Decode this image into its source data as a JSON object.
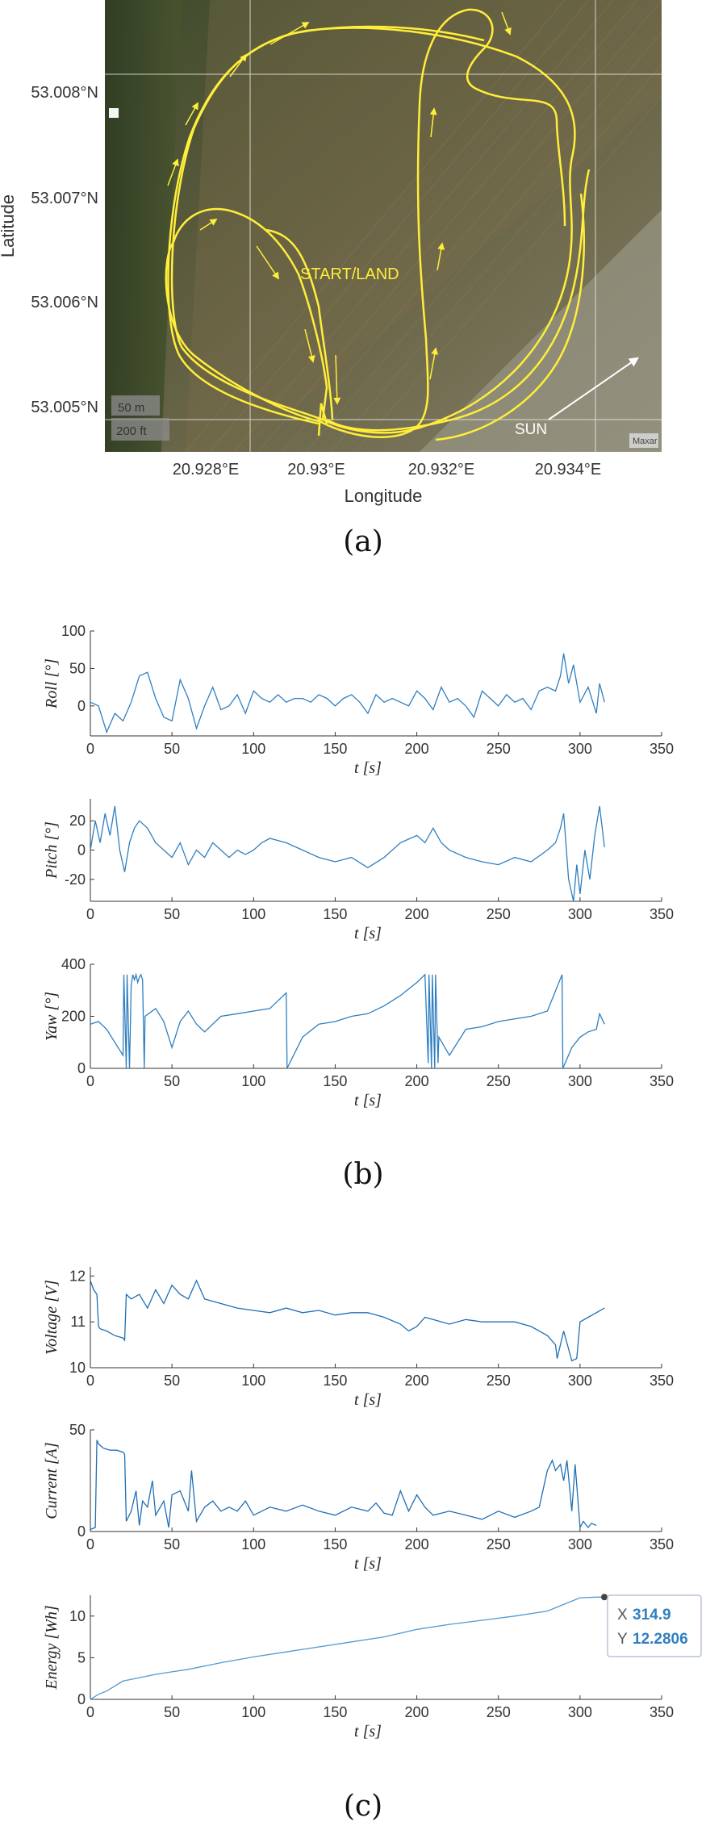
{
  "figure": {
    "captions": [
      "(a)",
      "(b)",
      "(c)"
    ]
  },
  "map": {
    "xlabel": "Longitude",
    "ylabel": "Latitude",
    "x_ticks": [
      "20.928°E",
      "20.93°E",
      "20.932°E",
      "20.934°E"
    ],
    "y_ticks": [
      "53.008°N",
      "53.007°N",
      "53.006°N",
      "53.005°N"
    ],
    "annotation_start": "START/LAND",
    "annotation_sun": "SUN",
    "scale_m": "50 m",
    "scale_ft": "200 ft",
    "attribution": "Maxar",
    "track_color": "#ffee3a",
    "ground_colors": [
      "#3e4d2c",
      "#6f6a4b",
      "#8f8a70"
    ]
  },
  "chart_data": [
    {
      "type": "line",
      "panel": "b",
      "ylabel": "Roll [°]",
      "xlabel": "t [s]",
      "xlim": [
        0,
        350
      ],
      "ylim": [
        -40,
        100
      ],
      "x_ticks": [
        "0",
        "50",
        "100",
        "150",
        "200",
        "250",
        "300",
        "350"
      ],
      "y_ticks": [
        "100",
        "50",
        "0"
      ],
      "color": "#2f7fc0",
      "x": [
        0,
        5,
        10,
        15,
        20,
        25,
        30,
        35,
        40,
        45,
        50,
        55,
        60,
        65,
        70,
        75,
        80,
        85,
        90,
        95,
        100,
        105,
        110,
        115,
        120,
        125,
        130,
        135,
        140,
        145,
        150,
        155,
        160,
        165,
        170,
        175,
        180,
        185,
        190,
        195,
        200,
        205,
        210,
        215,
        220,
        225,
        230,
        235,
        240,
        245,
        250,
        255,
        260,
        265,
        270,
        275,
        280,
        285,
        288,
        290,
        293,
        296,
        300,
        305,
        310,
        312,
        315
      ],
      "y": [
        5,
        0,
        -35,
        -10,
        -20,
        5,
        40,
        45,
        10,
        -15,
        -20,
        35,
        10,
        -30,
        0,
        25,
        -5,
        0,
        15,
        -10,
        20,
        10,
        5,
        15,
        5,
        10,
        10,
        5,
        15,
        10,
        0,
        10,
        15,
        5,
        -10,
        15,
        5,
        10,
        5,
        0,
        20,
        10,
        -5,
        25,
        5,
        10,
        0,
        -15,
        20,
        10,
        0,
        15,
        5,
        10,
        -5,
        20,
        25,
        20,
        40,
        70,
        30,
        55,
        5,
        25,
        -10,
        30,
        5
      ]
    },
    {
      "type": "line",
      "panel": "b",
      "ylabel": "Pitch [°]",
      "xlabel": "t [s]",
      "xlim": [
        0,
        350
      ],
      "ylim": [
        -35,
        35
      ],
      "x_ticks": [
        "0",
        "50",
        "100",
        "150",
        "200",
        "250",
        "300",
        "350"
      ],
      "y_ticks": [
        "20",
        "0",
        "-20"
      ],
      "color": "#2f7fc0",
      "x": [
        0,
        3,
        6,
        9,
        12,
        15,
        18,
        21,
        24,
        27,
        30,
        35,
        40,
        45,
        50,
        55,
        60,
        65,
        70,
        75,
        80,
        85,
        90,
        95,
        100,
        105,
        110,
        120,
        130,
        140,
        150,
        160,
        170,
        180,
        190,
        200,
        205,
        210,
        215,
        220,
        230,
        240,
        250,
        260,
        270,
        280,
        285,
        288,
        290,
        293,
        296,
        298,
        300,
        303,
        306,
        309,
        312,
        315
      ],
      "y": [
        0,
        20,
        5,
        25,
        10,
        30,
        0,
        -15,
        5,
        15,
        20,
        15,
        5,
        0,
        -5,
        5,
        -10,
        0,
        -5,
        5,
        0,
        -5,
        0,
        -3,
        0,
        5,
        8,
        5,
        0,
        -5,
        -8,
        -5,
        -12,
        -5,
        5,
        10,
        5,
        15,
        5,
        0,
        -5,
        -8,
        -10,
        -5,
        -8,
        0,
        5,
        15,
        25,
        -20,
        -35,
        -10,
        -30,
        0,
        -20,
        10,
        30,
        2
      ]
    },
    {
      "type": "line",
      "panel": "b",
      "ylabel": "Yaw [°]",
      "xlabel": "t [s]",
      "xlim": [
        0,
        350
      ],
      "ylim": [
        0,
        400
      ],
      "x_ticks": [
        "0",
        "50",
        "100",
        "150",
        "200",
        "250",
        "300",
        "350"
      ],
      "y_ticks": [
        "400",
        "200",
        "0"
      ],
      "color": "#2f7fc0",
      "x": [
        0,
        5,
        10,
        15,
        20,
        20.5,
        22,
        22.5,
        24,
        25,
        26,
        27,
        28,
        29,
        30,
        31,
        32,
        33,
        33.5,
        40,
        45,
        50,
        55,
        60,
        65,
        70,
        80,
        90,
        100,
        110,
        120,
        120.5,
        130,
        140,
        150,
        160,
        170,
        180,
        190,
        200,
        205,
        207,
        207.5,
        209,
        209.5,
        211,
        211.5,
        213,
        213.5,
        220,
        230,
        240,
        250,
        260,
        270,
        280,
        289,
        289.5,
        295,
        300,
        305,
        310,
        312,
        315
      ],
      "y": [
        170,
        180,
        150,
        100,
        50,
        360,
        0,
        360,
        0,
        320,
        360,
        340,
        360,
        330,
        350,
        360,
        340,
        0,
        200,
        230,
        180,
        80,
        180,
        220,
        170,
        140,
        200,
        210,
        220,
        230,
        290,
        0,
        120,
        170,
        180,
        200,
        210,
        240,
        280,
        330,
        360,
        20,
        360,
        0,
        360,
        0,
        360,
        20,
        120,
        50,
        150,
        160,
        180,
        190,
        200,
        220,
        360,
        0,
        80,
        120,
        140,
        150,
        210,
        170
      ]
    },
    {
      "type": "line",
      "panel": "c",
      "ylabel": "Voltage [V]",
      "xlabel": "t [s]",
      "xlim": [
        0,
        350
      ],
      "ylim": [
        10,
        12.2
      ],
      "x_ticks": [
        "0",
        "50",
        "100",
        "150",
        "200",
        "250",
        "300",
        "350"
      ],
      "y_ticks": [
        "12",
        "11",
        "10"
      ],
      "color": "#1f6fb5",
      "x": [
        0,
        2,
        4,
        5,
        6,
        10,
        15,
        20,
        21,
        22,
        25,
        30,
        35,
        40,
        45,
        50,
        55,
        60,
        65,
        70,
        80,
        90,
        100,
        110,
        120,
        130,
        140,
        150,
        160,
        170,
        180,
        190,
        195,
        200,
        205,
        210,
        220,
        230,
        240,
        250,
        260,
        270,
        280,
        285,
        286,
        290,
        295,
        298,
        300,
        305,
        310,
        315
      ],
      "y": [
        11.9,
        11.7,
        11.6,
        10.9,
        10.85,
        10.8,
        10.7,
        10.65,
        10.6,
        11.6,
        11.5,
        11.6,
        11.3,
        11.7,
        11.4,
        11.8,
        11.6,
        11.5,
        11.9,
        11.5,
        11.4,
        11.3,
        11.25,
        11.2,
        11.3,
        11.2,
        11.25,
        11.15,
        11.2,
        11.2,
        11.1,
        10.95,
        10.8,
        10.9,
        11.1,
        11.05,
        10.95,
        11.05,
        11.0,
        11.0,
        11.0,
        10.9,
        10.7,
        10.5,
        10.2,
        10.8,
        10.15,
        10.2,
        11.0,
        11.1,
        11.2,
        11.3
      ]
    },
    {
      "type": "line",
      "panel": "c",
      "ylabel": "Current [A]",
      "xlabel": "t [s]",
      "xlim": [
        0,
        350
      ],
      "ylim": [
        0,
        50
      ],
      "x_ticks": [
        "0",
        "50",
        "100",
        "150",
        "200",
        "250",
        "300",
        "350"
      ],
      "y_ticks": [
        "50",
        "0"
      ],
      "color": "#1f6fb5",
      "x": [
        0,
        3,
        4,
        5,
        8,
        12,
        16,
        20,
        21,
        22,
        25,
        28,
        30,
        32,
        35,
        38,
        40,
        45,
        48,
        50,
        55,
        60,
        62,
        65,
        70,
        75,
        80,
        85,
        90,
        95,
        100,
        110,
        120,
        130,
        140,
        150,
        160,
        170,
        175,
        180,
        185,
        190,
        195,
        200,
        205,
        210,
        220,
        230,
        240,
        250,
        260,
        270,
        275,
        280,
        283,
        285,
        288,
        290,
        292,
        295,
        297,
        300,
        302,
        305,
        307,
        310
      ],
      "y": [
        1,
        2,
        45,
        43,
        41,
        40,
        40,
        39,
        38,
        5,
        10,
        20,
        3,
        15,
        12,
        25,
        8,
        15,
        2,
        18,
        20,
        10,
        30,
        5,
        12,
        15,
        10,
        12,
        10,
        15,
        8,
        12,
        10,
        13,
        10,
        8,
        12,
        10,
        14,
        9,
        8,
        20,
        10,
        18,
        12,
        8,
        10,
        8,
        6,
        10,
        7,
        10,
        12,
        30,
        35,
        30,
        33,
        25,
        35,
        10,
        33,
        2,
        5,
        2,
        4,
        3
      ]
    },
    {
      "type": "line",
      "panel": "c",
      "ylabel": "Energy [Wh]",
      "xlabel": "t [s]",
      "xlim": [
        0,
        350
      ],
      "ylim": [
        0,
        12.5
      ],
      "x_ticks": [
        "0",
        "50",
        "100",
        "150",
        "200",
        "250",
        "300",
        "350"
      ],
      "y_ticks": [
        "10",
        "5",
        "0"
      ],
      "color": "#4f9ad4",
      "x": [
        0,
        5,
        10,
        20,
        25,
        40,
        50,
        60,
        80,
        100,
        120,
        140,
        160,
        180,
        200,
        220,
        240,
        260,
        280,
        290,
        300,
        310,
        314.9
      ],
      "y": [
        0,
        0.6,
        1.0,
        2.2,
        2.4,
        3.0,
        3.3,
        3.6,
        4.4,
        5.1,
        5.7,
        6.3,
        6.9,
        7.5,
        8.4,
        9.0,
        9.5,
        10.0,
        10.6,
        11.4,
        12.2,
        12.28,
        12.2806
      ]
    }
  ],
  "datatip": {
    "x_label": "X",
    "x_value": "314.9",
    "y_label": "Y",
    "y_value": "12.2806",
    "value_color": "#2f7fc0"
  }
}
